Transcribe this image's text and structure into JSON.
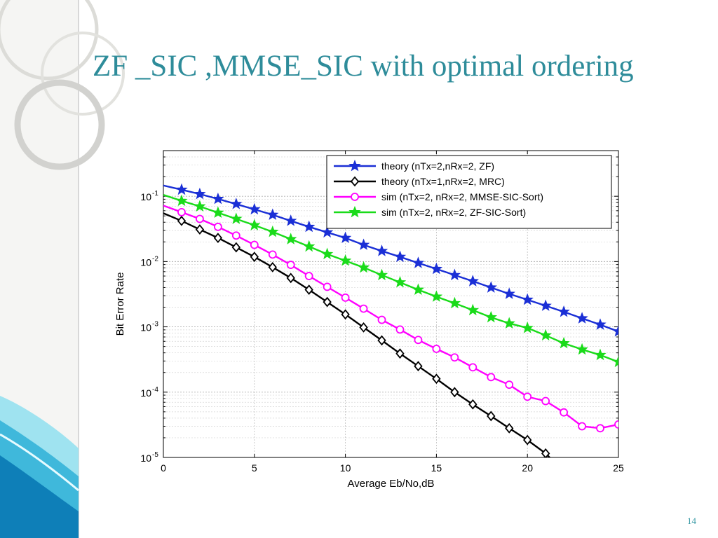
{
  "slide": {
    "title": "ZF _SIC ,MMSE_SIC with optimal ordering",
    "page_number": "14",
    "accent_color": "#2e8c9a"
  },
  "chart_data": {
    "type": "line",
    "title": "",
    "xlabel": "Average Eb/No,dB",
    "ylabel": "Bit Error Rate",
    "xlim": [
      0,
      25
    ],
    "ylim": [
      1e-05,
      0.5
    ],
    "y_scale": "log",
    "grid": true,
    "legend_position": "top-right",
    "x_ticks": [
      "0",
      "5",
      "10",
      "15",
      "20",
      "25"
    ],
    "y_ticks": [
      {
        "value": 0.1,
        "base": "10",
        "exp": "-1"
      },
      {
        "value": 0.01,
        "base": "10",
        "exp": "-2"
      },
      {
        "value": 0.001,
        "base": "10",
        "exp": "-3"
      },
      {
        "value": 0.0001,
        "base": "10",
        "exp": "-4"
      },
      {
        "value": 1e-05,
        "base": "10",
        "exp": "-5"
      }
    ],
    "x": [
      0,
      1,
      2,
      3,
      4,
      5,
      6,
      7,
      8,
      9,
      10,
      11,
      12,
      13,
      14,
      15,
      16,
      17,
      18,
      19,
      20,
      21,
      22,
      23,
      24,
      25
    ],
    "series": [
      {
        "name": "theory (nTx=2,nRx=2, ZF)",
        "color": "#1a2fd6",
        "marker": "star",
        "values": [
          0.146,
          0.126,
          0.108,
          0.091,
          0.076,
          0.063,
          0.052,
          0.042,
          0.034,
          0.028,
          0.023,
          0.018,
          0.0145,
          0.0118,
          0.0095,
          0.0077,
          0.0062,
          0.005,
          0.004,
          0.0032,
          0.0026,
          0.0021,
          0.0017,
          0.00135,
          0.00108,
          0.00085
        ]
      },
      {
        "name": "theory (nTx=1,nRx=2, MRC)",
        "color": "#000000",
        "marker": "diamond",
        "values": [
          0.055,
          0.042,
          0.031,
          0.023,
          0.0165,
          0.0118,
          0.0082,
          0.0056,
          0.0037,
          0.0024,
          0.00155,
          0.00098,
          0.00062,
          0.00039,
          0.00025,
          0.00016,
          0.0001,
          6.5e-05,
          4.3e-05,
          2.8e-05,
          1.85e-05,
          1.15e-05,
          null,
          null,
          null,
          null
        ]
      },
      {
        "name": "sim (nTx=2, nRx=2, MMSE-SIC-Sort)",
        "color": "#ff00ff",
        "marker": "circle",
        "values": [
          0.072,
          0.057,
          0.045,
          0.034,
          0.025,
          0.018,
          0.0128,
          0.0089,
          0.006,
          0.0041,
          0.0028,
          0.0019,
          0.00128,
          0.00091,
          0.00063,
          0.00046,
          0.00034,
          0.00024,
          0.00017,
          0.00013,
          8.5e-05,
          7.3e-05,
          4.9e-05,
          3e-05,
          2.8e-05,
          3.2e-05
        ]
      },
      {
        "name": "sim (nTx=2, nRx=2, ZF-SIC-Sort)",
        "color": "#1adb1a",
        "marker": "star",
        "values": [
          0.105,
          0.085,
          0.07,
          0.056,
          0.045,
          0.036,
          0.0285,
          0.022,
          0.017,
          0.013,
          0.0103,
          0.0081,
          0.0062,
          0.0048,
          0.0037,
          0.0029,
          0.0023,
          0.0018,
          0.0014,
          0.00113,
          0.00096,
          0.00074,
          0.00056,
          0.00045,
          0.00037,
          0.00029
        ]
      }
    ]
  }
}
